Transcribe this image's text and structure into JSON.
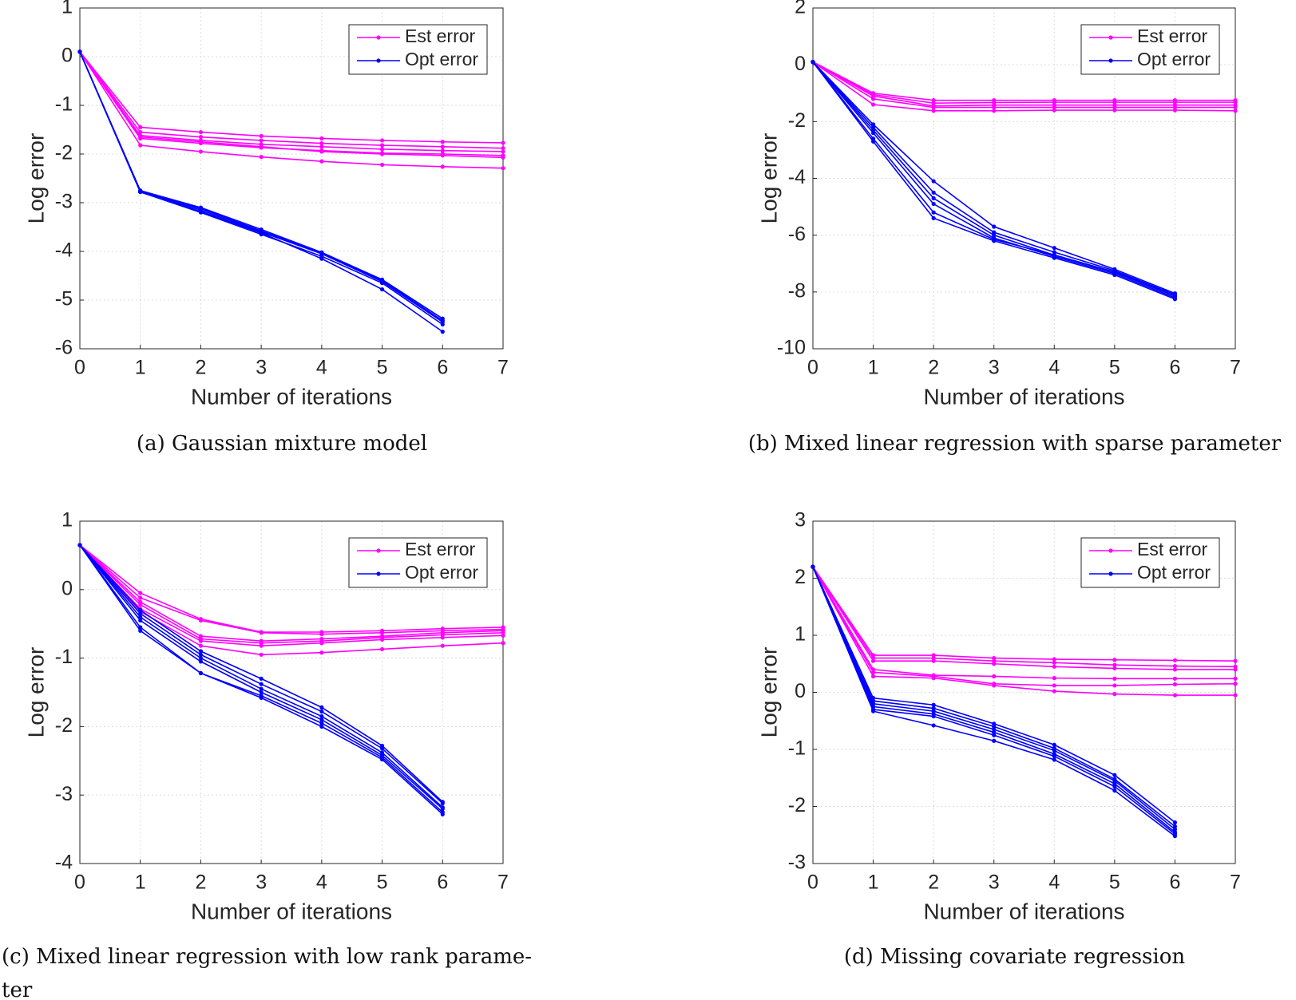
{
  "chart_data": [
    {
      "type": "line",
      "caption": [
        "(a) Gaussian mixture model"
      ],
      "xlabel": "Number of iterations",
      "ylabel": "Log error",
      "x": [
        0,
        1,
        2,
        3,
        4,
        5,
        6,
        7
      ],
      "xlim": [
        0,
        7
      ],
      "xticks": [
        0,
        1,
        2,
        3,
        4,
        5,
        6,
        7
      ],
      "ylim": [
        -6,
        1
      ],
      "yticks": [
        -6,
        -5,
        -4,
        -3,
        -2,
        -1,
        0,
        1
      ],
      "grid": true,
      "legend": "upper right",
      "series": [
        {
          "name": "Est error",
          "color": "#ff00ff",
          "values": [
            [
              0.1,
              -1.45,
              -1.55,
              -1.63,
              -1.68,
              -1.72,
              -1.75,
              -1.77
            ],
            [
              0.1,
              -1.55,
              -1.65,
              -1.72,
              -1.78,
              -1.82,
              -1.85,
              -1.88
            ],
            [
              0.1,
              -1.62,
              -1.72,
              -1.8,
              -1.85,
              -1.9,
              -1.93,
              -1.95
            ],
            [
              0.1,
              -1.68,
              -1.78,
              -1.87,
              -1.93,
              -1.98,
              -2.0,
              -2.03
            ],
            [
              0.1,
              -1.65,
              -1.75,
              -1.85,
              -1.95,
              -2.0,
              -2.03,
              -2.07
            ],
            [
              0.1,
              -1.82,
              -1.95,
              -2.06,
              -2.15,
              -2.22,
              -2.26,
              -2.29
            ]
          ]
        },
        {
          "name": "Opt error",
          "color": "#0000ff",
          "values": [
            [
              0.1,
              -2.75,
              -3.1,
              -3.55,
              -4.02,
              -4.58,
              -5.38,
              null
            ],
            [
              0.1,
              -2.77,
              -3.15,
              -3.6,
              -4.05,
              -4.62,
              -5.45,
              null
            ],
            [
              0.1,
              -2.78,
              -3.2,
              -3.65,
              -4.1,
              -4.65,
              -5.5,
              null
            ],
            [
              0.1,
              -2.78,
              -3.18,
              -3.62,
              -4.15,
              -4.78,
              -5.65,
              null
            ],
            [
              0.1,
              -2.76,
              -3.12,
              -3.58,
              -4.03,
              -4.6,
              -5.42,
              null
            ]
          ]
        }
      ]
    },
    {
      "type": "line",
      "caption": [
        "(b) Mixed linear regression with sparse parameter"
      ],
      "xlabel": "Number of iterations",
      "ylabel": "Log error",
      "x": [
        0,
        1,
        2,
        3,
        4,
        5,
        6,
        7
      ],
      "xlim": [
        0,
        7
      ],
      "xticks": [
        0,
        1,
        2,
        3,
        4,
        5,
        6,
        7
      ],
      "ylim": [
        -10,
        2
      ],
      "yticks": [
        -10,
        -8,
        -6,
        -4,
        -2,
        0,
        2
      ],
      "grid": true,
      "legend": "upper right",
      "series": [
        {
          "name": "Est error",
          "color": "#ff00ff",
          "values": [
            [
              0.1,
              -1.0,
              -1.25,
              -1.25,
              -1.25,
              -1.25,
              -1.25,
              -1.25
            ],
            [
              0.1,
              -1.05,
              -1.35,
              -1.33,
              -1.32,
              -1.32,
              -1.32,
              -1.32
            ],
            [
              0.1,
              -1.1,
              -1.45,
              -1.42,
              -1.42,
              -1.42,
              -1.42,
              -1.42
            ],
            [
              0.1,
              -1.2,
              -1.5,
              -1.5,
              -1.5,
              -1.5,
              -1.5,
              -1.5
            ],
            [
              0.1,
              -1.4,
              -1.62,
              -1.62,
              -1.6,
              -1.6,
              -1.6,
              -1.62
            ]
          ]
        },
        {
          "name": "Opt error",
          "color": "#0000ff",
          "values": [
            [
              0.1,
              -2.1,
              -4.1,
              -5.7,
              -6.45,
              -7.2,
              -8.05,
              null
            ],
            [
              0.1,
              -2.2,
              -4.5,
              -5.9,
              -6.6,
              -7.25,
              -8.1,
              null
            ],
            [
              0.1,
              -2.3,
              -4.7,
              -6.0,
              -6.7,
              -7.3,
              -8.15,
              null
            ],
            [
              0.1,
              -2.4,
              -4.9,
              -6.1,
              -6.75,
              -7.35,
              -8.2,
              null
            ],
            [
              0.1,
              -2.6,
              -5.2,
              -6.15,
              -6.7,
              -7.3,
              -8.1,
              null
            ],
            [
              0.1,
              -2.7,
              -5.4,
              -6.2,
              -6.8,
              -7.4,
              -8.25,
              null
            ]
          ]
        }
      ]
    },
    {
      "type": "line",
      "caption": [
        "(c) Mixed linear regression with low rank parame-",
        "ter"
      ],
      "xlabel": "Number of iterations",
      "ylabel": "Log error",
      "x": [
        0,
        1,
        2,
        3,
        4,
        5,
        6,
        7
      ],
      "xlim": [
        0,
        7
      ],
      "xticks": [
        0,
        1,
        2,
        3,
        4,
        5,
        6,
        7
      ],
      "ylim": [
        -4,
        1
      ],
      "yticks": [
        -4,
        -3,
        -2,
        -1,
        0,
        1
      ],
      "grid": true,
      "legend": "upper right",
      "series": [
        {
          "name": "Est error",
          "color": "#ff00ff",
          "values": [
            [
              0.65,
              -0.05,
              -0.43,
              -0.62,
              -0.62,
              -0.6,
              -0.57,
              -0.55
            ],
            [
              0.65,
              -0.12,
              -0.45,
              -0.63,
              -0.65,
              -0.63,
              -0.6,
              -0.58
            ],
            [
              0.65,
              -0.18,
              -0.68,
              -0.75,
              -0.72,
              -0.68,
              -0.63,
              -0.6
            ],
            [
              0.65,
              -0.22,
              -0.72,
              -0.78,
              -0.75,
              -0.7,
              -0.66,
              -0.63
            ],
            [
              0.65,
              -0.28,
              -0.75,
              -0.82,
              -0.78,
              -0.73,
              -0.7,
              -0.67
            ],
            [
              0.65,
              -0.32,
              -0.82,
              -0.95,
              -0.92,
              -0.87,
              -0.82,
              -0.78
            ]
          ]
        },
        {
          "name": "Opt error",
          "color": "#0000ff",
          "values": [
            [
              0.65,
              -0.3,
              -0.9,
              -1.3,
              -1.72,
              -2.28,
              -3.1,
              null
            ],
            [
              0.65,
              -0.35,
              -0.95,
              -1.38,
              -1.78,
              -2.32,
              -3.12,
              null
            ],
            [
              0.65,
              -0.4,
              -1.0,
              -1.45,
              -1.85,
              -2.38,
              -3.18,
              null
            ],
            [
              0.65,
              -0.45,
              -1.05,
              -1.5,
              -1.9,
              -2.42,
              -3.2,
              null
            ],
            [
              0.65,
              -0.55,
              -1.22,
              -1.55,
              -1.95,
              -2.45,
              -3.25,
              null
            ],
            [
              0.65,
              -0.6,
              -1.22,
              -1.58,
              -2.0,
              -2.48,
              -3.28,
              null
            ]
          ]
        }
      ]
    },
    {
      "type": "line",
      "caption": [
        "(d) Missing covariate regression"
      ],
      "xlabel": "Number of iterations",
      "ylabel": "Log error",
      "x": [
        0,
        1,
        2,
        3,
        4,
        5,
        6,
        7
      ],
      "xlim": [
        0,
        7
      ],
      "xticks": [
        0,
        1,
        2,
        3,
        4,
        5,
        6,
        7
      ],
      "ylim": [
        -3,
        3
      ],
      "yticks": [
        -3,
        -2,
        -1,
        0,
        1,
        2,
        3
      ],
      "grid": true,
      "legend": "upper right",
      "series": [
        {
          "name": "Est error",
          "color": "#ff00ff",
          "values": [
            [
              2.2,
              0.65,
              0.65,
              0.6,
              0.58,
              0.57,
              0.56,
              0.55
            ],
            [
              2.2,
              0.6,
              0.6,
              0.55,
              0.52,
              0.48,
              0.46,
              0.45
            ],
            [
              2.2,
              0.55,
              0.55,
              0.5,
              0.45,
              0.42,
              0.4,
              0.4
            ],
            [
              2.2,
              0.4,
              0.3,
              0.28,
              0.25,
              0.24,
              0.24,
              0.24
            ],
            [
              2.2,
              0.35,
              0.28,
              0.15,
              0.12,
              0.12,
              0.14,
              0.15
            ],
            [
              2.2,
              0.28,
              0.25,
              0.12,
              0.02,
              -0.03,
              -0.05,
              -0.05
            ]
          ]
        },
        {
          "name": "Opt error",
          "color": "#0000ff",
          "values": [
            [
              2.2,
              -0.1,
              -0.22,
              -0.55,
              -0.92,
              -1.45,
              -2.28,
              null
            ],
            [
              2.2,
              -0.15,
              -0.28,
              -0.6,
              -0.98,
              -1.52,
              -2.35,
              null
            ],
            [
              2.2,
              -0.2,
              -0.33,
              -0.65,
              -1.02,
              -1.55,
              -2.4,
              null
            ],
            [
              2.2,
              -0.25,
              -0.38,
              -0.7,
              -1.08,
              -1.6,
              -2.45,
              null
            ],
            [
              2.2,
              -0.3,
              -0.42,
              -0.75,
              -1.12,
              -1.65,
              -2.48,
              null
            ],
            [
              2.2,
              -0.33,
              -0.58,
              -0.85,
              -1.18,
              -1.72,
              -2.52,
              null
            ]
          ]
        }
      ]
    }
  ]
}
